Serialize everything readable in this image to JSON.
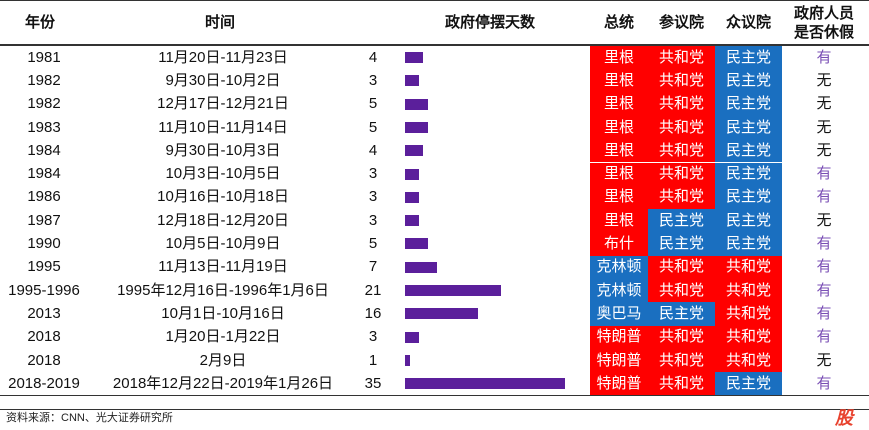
{
  "headers": {
    "year": "年份",
    "time": "时间",
    "days": "政府停摆天数",
    "president": "总统",
    "senate": "参议院",
    "house": "众议院",
    "leave": "政府人员是否休假"
  },
  "colors": {
    "rep": "#ff0000",
    "dem": "#1a6fc0",
    "bar": "#5b1f9b",
    "yes": "#7a4fb5",
    "no": "#111111"
  },
  "chart_data": {
    "type": "bar",
    "title": "政府停摆天数",
    "categories": [
      "1981",
      "1982",
      "1982",
      "1983",
      "1984",
      "1984",
      "1986",
      "1987",
      "1990",
      "1995",
      "1995-1996",
      "2013",
      "2018",
      "2018",
      "2018-2019"
    ],
    "values": [
      4,
      3,
      5,
      5,
      4,
      3,
      3,
      3,
      5,
      7,
      21,
      16,
      3,
      1,
      35
    ]
  },
  "rows": [
    {
      "year": "1981",
      "time": "11月20日-11月23日",
      "days": "4",
      "president": "里根",
      "senate": "共和党",
      "house": "民主党",
      "leave": "有",
      "pp": "R",
      "sp": "R",
      "hp": "D"
    },
    {
      "year": "1982",
      "time": "9月30日-10月2日",
      "days": "3",
      "president": "里根",
      "senate": "共和党",
      "house": "民主党",
      "leave": "无",
      "pp": "R",
      "sp": "R",
      "hp": "D"
    },
    {
      "year": "1982",
      "time": "12月17日-12月21日",
      "days": "5",
      "president": "里根",
      "senate": "共和党",
      "house": "民主党",
      "leave": "无",
      "pp": "R",
      "sp": "R",
      "hp": "D"
    },
    {
      "year": "1983",
      "time": "11月10日-11月14日",
      "days": "5",
      "president": "里根",
      "senate": "共和党",
      "house": "民主党",
      "leave": "无",
      "pp": "R",
      "sp": "R",
      "hp": "D"
    },
    {
      "year": "1984",
      "time": "9月30日-10月3日",
      "days": "4",
      "president": "里根",
      "senate": "共和党",
      "house": "民主党",
      "leave": "无",
      "pp": "R",
      "sp": "R",
      "hp": "D"
    },
    {
      "year": "1984",
      "time": "10月3日-10月5日",
      "days": "3",
      "president": "里根",
      "senate": "共和党",
      "house": "民主党",
      "leave": "有",
      "pp": "R",
      "sp": "R",
      "hp": "D"
    },
    {
      "year": "1986",
      "time": "10月16日-10月18日",
      "days": "3",
      "president": "里根",
      "senate": "共和党",
      "house": "民主党",
      "leave": "有",
      "pp": "R",
      "sp": "R",
      "hp": "D"
    },
    {
      "year": "1987",
      "time": "12月18日-12月20日",
      "days": "3",
      "president": "里根",
      "senate": "民主党",
      "house": "民主党",
      "leave": "无",
      "pp": "R",
      "sp": "D",
      "hp": "D"
    },
    {
      "year": "1990",
      "time": "10月5日-10月9日",
      "days": "5",
      "president": "布什",
      "senate": "民主党",
      "house": "民主党",
      "leave": "有",
      "pp": "R",
      "sp": "D",
      "hp": "D"
    },
    {
      "year": "1995",
      "time": "11月13日-11月19日",
      "days": "7",
      "president": "克林顿",
      "senate": "共和党",
      "house": "共和党",
      "leave": "有",
      "pp": "D",
      "sp": "R",
      "hp": "R"
    },
    {
      "year": "1995-1996",
      "time": "1995年12月16日-1996年1月6日",
      "days": "21",
      "president": "克林顿",
      "senate": "共和党",
      "house": "共和党",
      "leave": "有",
      "pp": "D",
      "sp": "R",
      "hp": "R"
    },
    {
      "year": "2013",
      "time": "10月1日-10月16日",
      "days": "16",
      "president": "奥巴马",
      "senate": "民主党",
      "house": "共和党",
      "leave": "有",
      "pp": "D",
      "sp": "D",
      "hp": "R"
    },
    {
      "year": "2018",
      "time": "1月20日-1月22日",
      "days": "3",
      "president": "特朗普",
      "senate": "共和党",
      "house": "共和党",
      "leave": "有",
      "pp": "R",
      "sp": "R",
      "hp": "R"
    },
    {
      "year": "2018",
      "time": "2月9日",
      "days": "1",
      "president": "特朗普",
      "senate": "共和党",
      "house": "共和党",
      "leave": "无",
      "pp": "R",
      "sp": "R",
      "hp": "R"
    },
    {
      "year": "2018-2019",
      "time": "2018年12月22日-2019年1月26日",
      "days": "35",
      "president": "特朗普",
      "senate": "共和党",
      "house": "民主党",
      "leave": "有",
      "pp": "R",
      "sp": "R",
      "hp": "D"
    }
  ],
  "source": "资料来源：CNN、光大证券研究所",
  "watermark": "股"
}
